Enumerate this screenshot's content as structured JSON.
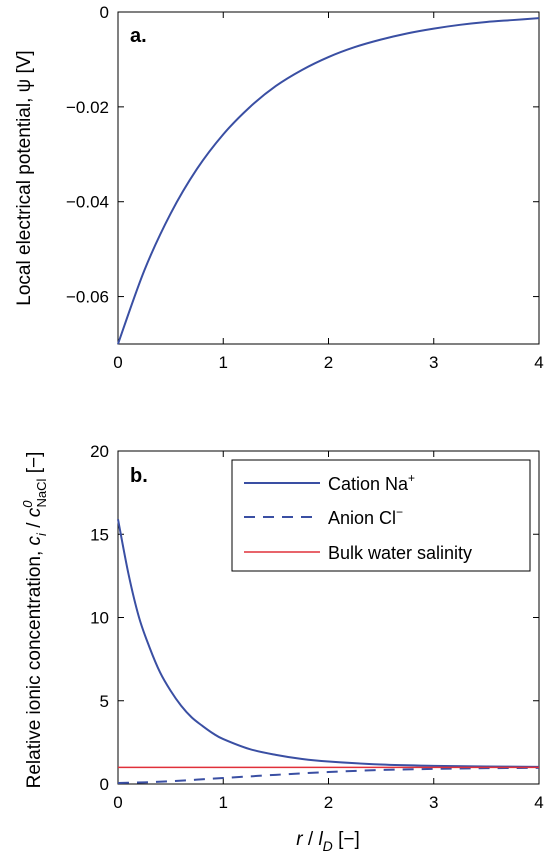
{
  "chart_data": [
    {
      "type": "line",
      "panel_label": "a.",
      "xlabel": "",
      "ylabel": "Local electrical potential, ψ [V]",
      "xlim": [
        0,
        4
      ],
      "ylim": [
        -0.07,
        0
      ],
      "x_ticks": [
        "0",
        "1",
        "2",
        "3",
        "4"
      ],
      "y_ticks": [
        "0",
        "−0.02",
        "−0.04",
        "−0.06"
      ],
      "grid": false,
      "series": [
        {
          "color": "#3a4fa3",
          "style": "solid",
          "x": [
            0,
            0.25,
            0.5,
            0.75,
            1,
            1.25,
            1.5,
            1.75,
            2,
            2.25,
            2.5,
            2.75,
            3,
            3.25,
            3.5,
            3.75,
            4
          ],
          "y": [
            -0.07,
            -0.0545,
            -0.0425,
            -0.0331,
            -0.0258,
            -0.0201,
            -0.0156,
            -0.0122,
            -0.0095,
            -0.0074,
            -0.0058,
            -0.0045,
            -0.0035,
            -0.0027,
            -0.0021,
            -0.0017,
            -0.0013
          ]
        }
      ]
    },
    {
      "type": "line",
      "panel_label": "b.",
      "xlabel": "r / l_D [−]",
      "xlabel_parts": {
        "r": "r",
        "slash": " / ",
        "l": "l",
        "sub": "D",
        "unit": " [−]"
      },
      "ylabel": "Relative ionic concentration, c_i / c⁰_NaCl [−]",
      "ylabel_parts": {
        "text": "Relative ionic concentration, ",
        "c": "c",
        "i": "i",
        "slash": " / ",
        "c2": "c",
        "sup": "0",
        "sub": "NaCl",
        "unit": " [−]"
      },
      "xlim": [
        0,
        4
      ],
      "ylim": [
        0,
        20
      ],
      "x_ticks": [
        "0",
        "1",
        "2",
        "3",
        "4"
      ],
      "y_ticks": [
        "0",
        "5",
        "10",
        "15",
        "20"
      ],
      "grid": false,
      "legend_position": "top-right",
      "series": [
        {
          "name": "Cation Na⁺",
          "name_base": "Cation Na",
          "name_sup": "+",
          "color": "#3a4fa3",
          "style": "solid",
          "x": [
            0,
            0.1,
            0.2,
            0.3,
            0.4,
            0.5,
            0.6,
            0.7,
            0.8,
            0.9,
            1,
            1.25,
            1.5,
            1.75,
            2,
            2.5,
            3,
            3.5,
            4
          ],
          "y": [
            15.9,
            12.6,
            10.0,
            8.2,
            6.7,
            5.6,
            4.7,
            4.0,
            3.5,
            3.05,
            2.7,
            2.1,
            1.75,
            1.5,
            1.35,
            1.17,
            1.09,
            1.05,
            1.03
          ]
        },
        {
          "name": "Anion Cl⁻",
          "name_base": "Anion Cl",
          "name_sup": "−",
          "color": "#3a4fa3",
          "style": "dashed",
          "x": [
            0,
            0.25,
            0.5,
            0.75,
            1,
            1.5,
            2,
            2.5,
            3,
            3.5,
            4
          ],
          "y": [
            0.06,
            0.1,
            0.17,
            0.26,
            0.36,
            0.55,
            0.72,
            0.84,
            0.91,
            0.95,
            0.97
          ]
        },
        {
          "name": "Bulk water salinity",
          "color": "#e0303a",
          "style": "solid",
          "x": [
            0,
            4
          ],
          "y": [
            1,
            1
          ]
        }
      ]
    }
  ]
}
